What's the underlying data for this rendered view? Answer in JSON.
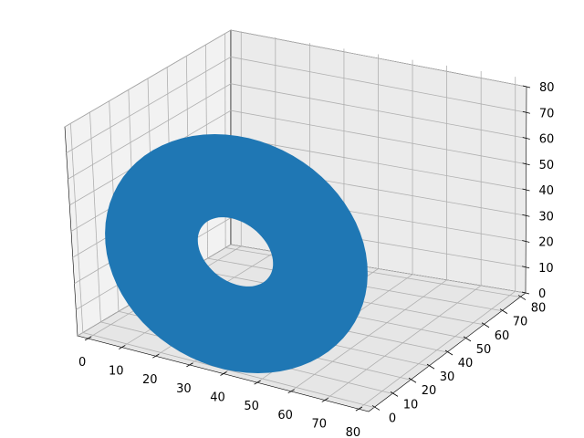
{
  "chart_data": {
    "type": "surface3d",
    "title": "",
    "xlabel": "",
    "ylabel": "",
    "zlabel": "",
    "x_ticks": [
      "0",
      "10",
      "20",
      "30",
      "40",
      "50",
      "60",
      "70",
      "80"
    ],
    "y_ticks": [
      "0",
      "10",
      "20",
      "30",
      "40",
      "50",
      "60",
      "70",
      "80"
    ],
    "z_ticks": [
      "0",
      "10",
      "20",
      "30",
      "40",
      "50",
      "60",
      "70",
      "80"
    ],
    "xlim": [
      -3,
      83
    ],
    "ylim": [
      -3,
      83
    ],
    "zlim": [
      0,
      80
    ],
    "grid": true,
    "series": [
      {
        "shape": "torus",
        "center": [
          40,
          40,
          40
        ],
        "major_radius": 30,
        "minor_radius": 10,
        "color": "#1f77b4"
      }
    ]
  }
}
